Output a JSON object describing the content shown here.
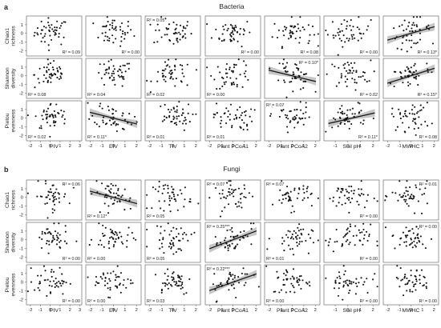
{
  "figure": {
    "x_variables": [
      "PIV",
      "EIV",
      "TIV",
      "Plant PCoA1",
      "Plant PCoA2",
      "Soil pH",
      "MWHC"
    ],
    "row_labels": [
      [
        "Chao1",
        "richness"
      ],
      [
        "Shannon",
        "diversity"
      ],
      [
        "Pielou",
        "evenness"
      ]
    ],
    "y_ticks": [
      "1",
      "0",
      "-1",
      "-2"
    ],
    "x_tick_sets": {
      "PIV": [
        "-2",
        "-1",
        "0",
        "1",
        "2",
        "3"
      ],
      "EIV": [
        "-2",
        "-1",
        "0",
        "1",
        "2"
      ],
      "TIV": [
        "-2",
        "-1",
        "0",
        "1",
        "2"
      ],
      "Plant PCoA1": [
        "-2",
        "-1",
        "0",
        "1",
        "2"
      ],
      "Plant PCoA2": [
        "-2",
        "-1",
        "0",
        "1",
        "2"
      ],
      "Soil pH": [
        "-1",
        "0",
        "1",
        "2"
      ],
      "MWHC": [
        "-2",
        "-1",
        "0",
        "1",
        "2"
      ]
    }
  },
  "chart_data": [
    {
      "type": "scatter",
      "panel_letter": "a",
      "title": "Bacteria",
      "r2": [
        [
          "R² = 0.09",
          "R² = 0.00",
          "R² = 0.05",
          "R² = 0.00",
          "R² = 0.08",
          "R² = 0.00",
          "R² = 0.13*"
        ],
        [
          "R² = 0.08",
          "R² = 0.04",
          "R² = 0.02",
          "R² = 0.00",
          "R² = 0.10*",
          "R² = 0.02",
          "R² = 0.15*"
        ],
        [
          "R² = 0.02",
          "R² = 0.11*",
          "R² = 0.01",
          "R² = 0.01",
          "R² = 0.07",
          "R² = 0.11*",
          "R² = 0.08"
        ]
      ],
      "r2_pos": [
        [
          "br",
          "br",
          "tl",
          "br",
          "br",
          "br",
          "br"
        ],
        [
          "bl",
          "bl",
          "bl",
          "bl",
          "tr",
          "br",
          "br"
        ],
        [
          "bl",
          "bl",
          "bl",
          "bl",
          "tl",
          "br",
          "br"
        ]
      ],
      "fits": [
        {
          "row": 0,
          "col": 6,
          "slope": 0.38,
          "intercept": 0.0
        },
        {
          "row": 1,
          "col": 4,
          "slope": -0.32,
          "intercept": 0.0
        },
        {
          "row": 1,
          "col": 6,
          "slope": 0.42,
          "intercept": 0.0
        },
        {
          "row": 2,
          "col": 1,
          "slope": -0.33,
          "intercept": 0.0
        },
        {
          "row": 2,
          "col": 5,
          "slope": 0.33,
          "intercept": 0.0
        }
      ]
    },
    {
      "type": "scatter",
      "panel_letter": "b",
      "title": "Fungi",
      "r2": [
        [
          "R² = 0.06",
          "R² = 0.12*",
          "R² = 0.05",
          "R² = 0.07",
          "R² = 0.07",
          "R² = 0.00",
          "R² = 0.01"
        ],
        [
          "R² = 0.00",
          "R² = 0.00",
          "R² = 0.05",
          "R² = 0.25***",
          "R² = 0.01",
          "R² = 0.00",
          "R² = 0.00"
        ],
        [
          "R² = 0.00",
          "R² = 0.00",
          "R² = 0.03",
          "R² = 0.22***",
          "R² = 0.00",
          "R² = 0.00",
          "R² = 0.00"
        ]
      ],
      "r2_pos": [
        [
          "tr",
          "bl",
          "bl",
          "tl",
          "tl",
          "br",
          "tr"
        ],
        [
          "br",
          "bl",
          "bl",
          "tl",
          "bl",
          "br",
          "tr"
        ],
        [
          "br",
          "bl",
          "bl",
          "tl",
          "bl",
          "br",
          "br"
        ]
      ],
      "fits": [
        {
          "row": 0,
          "col": 1,
          "slope": -0.35,
          "intercept": 0.0
        },
        {
          "row": 1,
          "col": 3,
          "slope": 0.5,
          "intercept": 0.0
        },
        {
          "row": 2,
          "col": 3,
          "slope": 0.47,
          "intercept": 0.0
        }
      ]
    }
  ]
}
